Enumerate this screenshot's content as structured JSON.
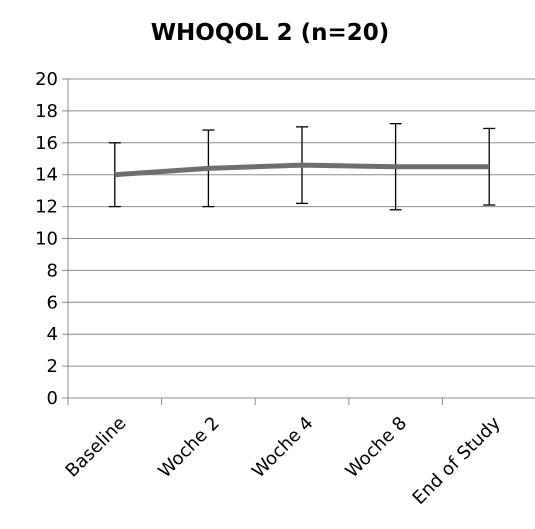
{
  "chart_data": {
    "type": "line",
    "title": "WHOQOL 2 (n=20)",
    "xlabel": "",
    "ylabel": "",
    "categories": [
      "Baseline",
      "Woche 2",
      "Woche 4",
      "Woche 8",
      "End of Study"
    ],
    "series": [
      {
        "values": [
          14.0,
          14.4,
          14.6,
          14.5,
          14.5
        ],
        "error_low": [
          12.0,
          12.0,
          12.2,
          11.8,
          12.1
        ],
        "error_high": [
          16.0,
          16.8,
          17.0,
          17.2,
          16.9
        ],
        "color": "#6e6e6e"
      }
    ],
    "ylim": [
      0,
      20
    ],
    "yticks": [
      0,
      2,
      4,
      6,
      8,
      10,
      12,
      14,
      16,
      18,
      20
    ],
    "grid": "horizontal",
    "legend": "none",
    "colors": {
      "line": "#6e6e6e",
      "grid": "#8c8c8c",
      "error_bar": "#000000",
      "axis": "#8c8c8c"
    }
  }
}
